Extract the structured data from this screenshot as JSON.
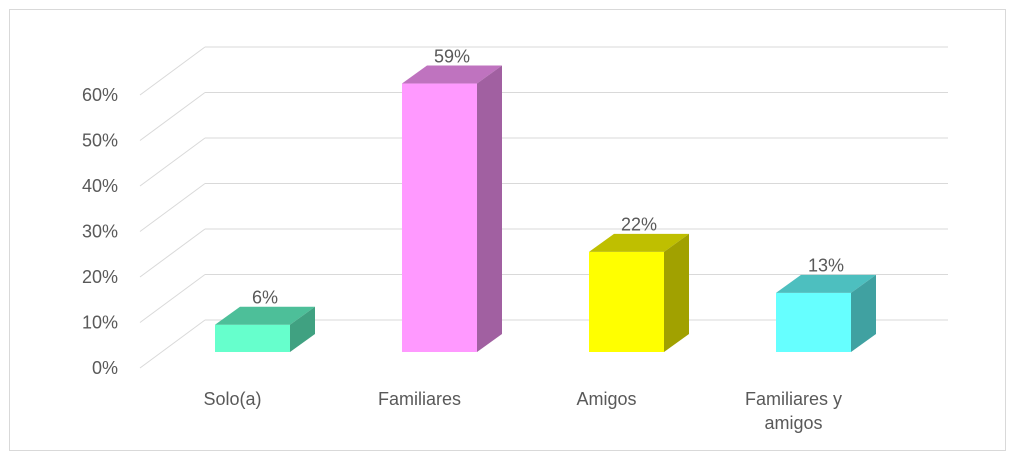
{
  "chart_data": {
    "type": "bar3d",
    "categories": [
      "Solo(a)",
      "Familiares",
      "Amigos",
      "Familiares y amigos"
    ],
    "values": [
      6,
      59,
      22,
      13
    ],
    "value_labels": [
      "6%",
      "59%",
      "22%",
      "13%"
    ],
    "colors": [
      "#66ffcc",
      "#ff99ff",
      "#ffff00",
      "#66ffff"
    ],
    "ylim": [
      0,
      60
    ],
    "yticks": [
      {
        "value": 0,
        "label": "0%"
      },
      {
        "value": 10,
        "label": "10%"
      },
      {
        "value": 20,
        "label": "20%"
      },
      {
        "value": 30,
        "label": "30%"
      },
      {
        "value": 40,
        "label": "40%"
      },
      {
        "value": 50,
        "label": "50%"
      },
      {
        "value": 60,
        "label": "60%"
      }
    ],
    "grid": true
  }
}
